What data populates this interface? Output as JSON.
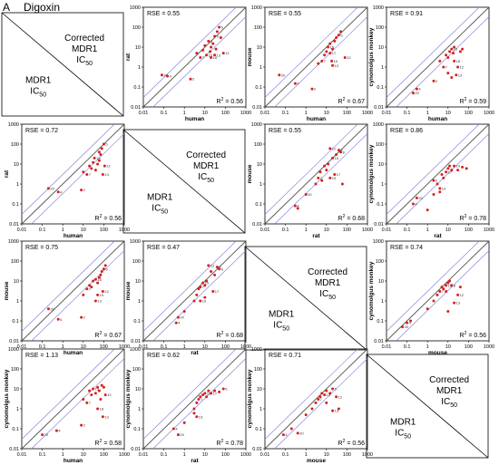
{
  "header": {
    "panel_letter": "A",
    "title": "Digoxin"
  },
  "colors": {
    "point": "#d62020",
    "identity_line": "#555555",
    "fold_line": "#7a7ad6",
    "frame": "#000000"
  },
  "diagonal_text": {
    "top_line1": "Corrected",
    "top_line2": "MDR1",
    "top_line3": "IC",
    "top_sub": "50",
    "bottom_line1": "MDR1",
    "bottom_line2": "IC",
    "bottom_sub": "50"
  },
  "axis_ticks": [
    "0.01",
    "0.1",
    "1",
    "10",
    "100",
    "1000"
  ],
  "stat_labels": {
    "rse_prefix": "RSE = ",
    "r2_label": "R",
    "r2_sup": "2",
    "r2_eq": " = "
  },
  "chart_data": [
    {
      "type": "scatter",
      "row": 0,
      "col": 1,
      "xlabel": "human",
      "ylabel": "rat",
      "rse": "0.55",
      "r2": "0.56",
      "points": [
        [
          0.08,
          0.4,
          "20"
        ],
        [
          0.15,
          0.35,
          "4"
        ],
        [
          2,
          0.25,
          "2"
        ],
        [
          4,
          5,
          ""
        ],
        [
          6,
          3,
          "7"
        ],
        [
          8,
          7,
          ""
        ],
        [
          10,
          12,
          ""
        ],
        [
          12,
          4,
          "15"
        ],
        [
          15,
          20,
          "8"
        ],
        [
          18,
          6,
          ""
        ],
        [
          20,
          10,
          ""
        ],
        [
          25,
          15,
          ""
        ],
        [
          30,
          35,
          "9"
        ],
        [
          35,
          8,
          ""
        ],
        [
          40,
          60,
          ""
        ],
        [
          50,
          100,
          "5"
        ],
        [
          60,
          30,
          ""
        ],
        [
          80,
          5,
          "12"
        ],
        [
          20,
          3,
          "18"
        ],
        [
          30,
          4,
          "13"
        ]
      ]
    },
    {
      "type": "scatter",
      "row": 0,
      "col": 2,
      "xlabel": "human",
      "ylabel": "mouse",
      "rse": "0.55",
      "r2": "0.67",
      "points": [
        [
          0.05,
          0.4,
          "20"
        ],
        [
          0.3,
          0.15,
          "4"
        ],
        [
          2,
          0.08,
          "2"
        ],
        [
          4,
          1.5,
          ""
        ],
        [
          6,
          2,
          "7"
        ],
        [
          8,
          4,
          ""
        ],
        [
          10,
          6,
          ""
        ],
        [
          12,
          10,
          "15"
        ],
        [
          15,
          15,
          ""
        ],
        [
          18,
          2,
          "19"
        ],
        [
          20,
          8,
          ""
        ],
        [
          25,
          20,
          ""
        ],
        [
          30,
          30,
          ""
        ],
        [
          40,
          40,
          "5"
        ],
        [
          50,
          60,
          ""
        ],
        [
          80,
          3,
          "12"
        ],
        [
          20,
          1.2,
          "13"
        ],
        [
          15,
          5,
          "17"
        ]
      ]
    },
    {
      "type": "scatter",
      "row": 0,
      "col": 3,
      "xlabel": "human",
      "ylabel": "cynomolgus monkey",
      "rse": "0.91",
      "r2": "0.59",
      "points": [
        [
          0.2,
          0.05,
          "20"
        ],
        [
          0.3,
          0.08,
          "4"
        ],
        [
          2,
          0.2,
          "2"
        ],
        [
          4,
          2,
          ""
        ],
        [
          6,
          1,
          "7"
        ],
        [
          8,
          4,
          ""
        ],
        [
          10,
          3,
          ""
        ],
        [
          12,
          6,
          ""
        ],
        [
          15,
          8,
          "15"
        ],
        [
          18,
          5,
          ""
        ],
        [
          20,
          10,
          ""
        ],
        [
          25,
          0.4,
          "13"
        ],
        [
          30,
          1,
          "12"
        ],
        [
          40,
          6,
          ""
        ],
        [
          50,
          8,
          ""
        ],
        [
          10,
          0.5,
          ""
        ],
        [
          20,
          2,
          "18"
        ],
        [
          15,
          0.3,
          ""
        ]
      ]
    },
    {
      "type": "scatter",
      "row": 1,
      "col": 0,
      "xlabel": "human",
      "ylabel": "rat",
      "rse": "0.72",
      "r2": "0.56",
      "points": [
        [
          0.2,
          0.6,
          "20"
        ],
        [
          0.6,
          0.4,
          "4"
        ],
        [
          8,
          0.5,
          "2"
        ],
        [
          10,
          4,
          ""
        ],
        [
          15,
          3,
          "7"
        ],
        [
          20,
          8,
          ""
        ],
        [
          25,
          6,
          ""
        ],
        [
          30,
          12,
          ""
        ],
        [
          35,
          20,
          "15"
        ],
        [
          40,
          5,
          ""
        ],
        [
          50,
          10,
          ""
        ],
        [
          60,
          15,
          ""
        ],
        [
          70,
          30,
          ""
        ],
        [
          80,
          60,
          ""
        ],
        [
          100,
          100,
          "5"
        ],
        [
          110,
          8,
          "12"
        ],
        [
          90,
          3,
          "13"
        ],
        [
          60,
          40,
          ""
        ]
      ]
    },
    {
      "type": "scatter",
      "row": 1,
      "col": 2,
      "xlabel": "rat",
      "ylabel": "mouse",
      "rse": "0.55",
      "r2": "0.68",
      "points": [
        [
          0.3,
          0.08,
          "4"
        ],
        [
          0.4,
          0.06,
          ""
        ],
        [
          1,
          0.3,
          "20"
        ],
        [
          3,
          1,
          ""
        ],
        [
          4,
          2,
          "7"
        ],
        [
          5,
          4,
          ""
        ],
        [
          6,
          1.5,
          ""
        ],
        [
          8,
          8,
          ""
        ],
        [
          10,
          5,
          ""
        ],
        [
          12,
          10,
          ""
        ],
        [
          15,
          60,
          "12"
        ],
        [
          20,
          20,
          "15"
        ],
        [
          25,
          3,
          "17"
        ],
        [
          30,
          30,
          ""
        ],
        [
          40,
          50,
          "5"
        ],
        [
          50,
          40,
          "8"
        ],
        [
          60,
          1,
          ""
        ],
        [
          15,
          2,
          "19"
        ]
      ]
    },
    {
      "type": "scatter",
      "row": 1,
      "col": 3,
      "xlabel": "rat",
      "ylabel": "cynomolgus monkey",
      "rse": "0.86",
      "r2": "0.78",
      "points": [
        [
          0.2,
          0.1,
          "4"
        ],
        [
          0.3,
          0.2,
          "20"
        ],
        [
          1,
          0.05,
          ""
        ],
        [
          2,
          0.3,
          ""
        ],
        [
          3,
          1,
          ""
        ],
        [
          4,
          0.6,
          "13"
        ],
        [
          5,
          3,
          ""
        ],
        [
          6,
          2,
          ""
        ],
        [
          8,
          4,
          "17"
        ],
        [
          10,
          6,
          ""
        ],
        [
          12,
          8,
          ""
        ],
        [
          15,
          5,
          ""
        ],
        [
          20,
          8,
          "19"
        ],
        [
          30,
          5,
          ""
        ],
        [
          50,
          7,
          ""
        ],
        [
          80,
          6,
          ""
        ],
        [
          2,
          1.5,
          "2"
        ],
        [
          4,
          0.4,
          ""
        ]
      ]
    },
    {
      "type": "scatter",
      "row": 2,
      "col": 0,
      "xlabel": "human",
      "ylabel": "mouse",
      "rse": "0.75",
      "r2": "0.67",
      "points": [
        [
          0.2,
          0.4,
          "20"
        ],
        [
          0.6,
          0.12,
          "4"
        ],
        [
          8,
          0.15,
          "2"
        ],
        [
          10,
          2,
          ""
        ],
        [
          15,
          4,
          "7"
        ],
        [
          20,
          6,
          ""
        ],
        [
          25,
          5,
          ""
        ],
        [
          30,
          10,
          ""
        ],
        [
          40,
          12,
          "15"
        ],
        [
          50,
          8,
          ""
        ],
        [
          60,
          15,
          ""
        ],
        [
          70,
          20,
          ""
        ],
        [
          80,
          30,
          ""
        ],
        [
          100,
          40,
          "5"
        ],
        [
          120,
          60,
          ""
        ],
        [
          90,
          3,
          "12"
        ],
        [
          50,
          2,
          "19"
        ],
        [
          40,
          1,
          "13"
        ]
      ]
    },
    {
      "type": "scatter",
      "row": 2,
      "col": 1,
      "xlabel": "rat",
      "ylabel": "mouse",
      "rse": "0.47",
      "r2": "0.68",
      "points": [
        [
          0.4,
          0.08,
          "4"
        ],
        [
          0.5,
          0.15,
          "20"
        ],
        [
          1,
          0.3,
          ""
        ],
        [
          3,
          1,
          ""
        ],
        [
          4,
          2,
          ""
        ],
        [
          5,
          4,
          ""
        ],
        [
          6,
          5,
          "7"
        ],
        [
          8,
          8,
          "15"
        ],
        [
          10,
          6,
          ""
        ],
        [
          12,
          10,
          ""
        ],
        [
          15,
          60,
          "12"
        ],
        [
          20,
          30,
          ""
        ],
        [
          25,
          3,
          "17"
        ],
        [
          30,
          20,
          ""
        ],
        [
          40,
          50,
          "5"
        ],
        [
          50,
          40,
          "8"
        ],
        [
          10,
          1.5,
          ""
        ],
        [
          6,
          1,
          "19"
        ]
      ]
    },
    {
      "type": "scatter",
      "row": 2,
      "col": 3,
      "xlabel": "mouse",
      "ylabel": "cynomolgus monkey",
      "rse": "0.74",
      "r2": "0.56",
      "points": [
        [
          0.06,
          0.05,
          "20"
        ],
        [
          0.1,
          0.08,
          "4"
        ],
        [
          0.15,
          0.1,
          ""
        ],
        [
          1,
          0.4,
          ""
        ],
        [
          2,
          1,
          ""
        ],
        [
          3,
          2,
          ""
        ],
        [
          4,
          3,
          "7"
        ],
        [
          5,
          5,
          ""
        ],
        [
          6,
          4,
          ""
        ],
        [
          8,
          6,
          "15"
        ],
        [
          10,
          8,
          ""
        ],
        [
          12,
          10,
          ""
        ],
        [
          15,
          6,
          "8"
        ],
        [
          20,
          0.8,
          "13"
        ],
        [
          30,
          2,
          "12"
        ],
        [
          40,
          5,
          ""
        ],
        [
          8,
          3,
          ""
        ],
        [
          10,
          0.3,
          ""
        ]
      ]
    },
    {
      "type": "scatter",
      "row": 3,
      "col": 0,
      "xlabel": "human",
      "ylabel": "cynomolgus monkey",
      "rse": "1.13",
      "r2": "0.58",
      "points": [
        [
          0.1,
          0.05,
          "20"
        ],
        [
          0.5,
          0.08,
          "4"
        ],
        [
          8,
          0.15,
          "2"
        ],
        [
          10,
          3,
          ""
        ],
        [
          15,
          2,
          "7"
        ],
        [
          20,
          8,
          ""
        ],
        [
          25,
          5,
          ""
        ],
        [
          30,
          10,
          "15"
        ],
        [
          40,
          6,
          ""
        ],
        [
          50,
          12,
          ""
        ],
        [
          60,
          8,
          ""
        ],
        [
          80,
          15,
          ""
        ],
        [
          100,
          12,
          ""
        ],
        [
          120,
          5,
          "12"
        ],
        [
          90,
          0.4,
          "13"
        ],
        [
          50,
          1,
          "18"
        ],
        [
          70,
          3,
          ""
        ]
      ]
    },
    {
      "type": "scatter",
      "row": 3,
      "col": 1,
      "xlabel": "rat",
      "ylabel": "cynomolgus monkey",
      "rse": "0.62",
      "r2": "0.78",
      "points": [
        [
          0.3,
          0.1,
          "4"
        ],
        [
          0.5,
          0.05,
          "20"
        ],
        [
          1,
          0.2,
          ""
        ],
        [
          3,
          1,
          ""
        ],
        [
          4,
          2,
          ""
        ],
        [
          5,
          3,
          "7"
        ],
        [
          6,
          4,
          ""
        ],
        [
          8,
          5,
          ""
        ],
        [
          10,
          6,
          "15"
        ],
        [
          12,
          4,
          ""
        ],
        [
          15,
          8,
          ""
        ],
        [
          20,
          6,
          "17"
        ],
        [
          30,
          8,
          ""
        ],
        [
          50,
          7,
          ""
        ],
        [
          80,
          10,
          "5"
        ],
        [
          4,
          0.4,
          "13"
        ],
        [
          3,
          0.6,
          ""
        ]
      ]
    },
    {
      "type": "scatter",
      "row": 3,
      "col": 2,
      "xlabel": "mouse",
      "ylabel": "cynomolgus monkey",
      "rse": "0.71",
      "r2": "0.56",
      "points": [
        [
          0.08,
          0.05,
          "4"
        ],
        [
          0.2,
          0.1,
          ""
        ],
        [
          0.4,
          0.06,
          "20"
        ],
        [
          1,
          0.5,
          ""
        ],
        [
          2,
          1,
          ""
        ],
        [
          3,
          2,
          ""
        ],
        [
          4,
          3,
          "7"
        ],
        [
          5,
          4,
          ""
        ],
        [
          6,
          6,
          ""
        ],
        [
          8,
          5,
          "15"
        ],
        [
          10,
          8,
          ""
        ],
        [
          15,
          6,
          ""
        ],
        [
          20,
          10,
          "5"
        ],
        [
          30,
          4,
          "12"
        ],
        [
          20,
          0.8,
          "13"
        ],
        [
          40,
          1,
          ""
        ],
        [
          10,
          2,
          ""
        ]
      ]
    }
  ]
}
